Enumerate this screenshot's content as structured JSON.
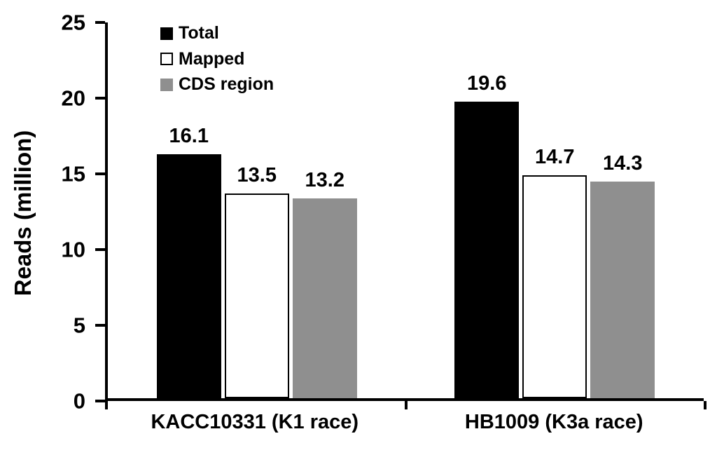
{
  "chart_data": {
    "type": "bar",
    "title": "",
    "xlabel": "",
    "ylabel": "Reads (million)",
    "ylim": [
      0,
      25
    ],
    "yticks": [
      0,
      5,
      10,
      15,
      20,
      25
    ],
    "grid": false,
    "legend_position": "top-left-inside",
    "value_labels_shown": true,
    "categories": [
      "KACC10331 (K1 race)",
      "HB1009 (K3a race)"
    ],
    "series": [
      {
        "name": "Total",
        "color": "#000000",
        "border": "#000000",
        "values": [
          16.1,
          19.6
        ]
      },
      {
        "name": "Mapped",
        "color": "#ffffff",
        "border": "#000000",
        "values": [
          13.5,
          14.7
        ]
      },
      {
        "name": "CDS region",
        "color": "#8f8f8f",
        "border": "#8f8f8f",
        "values": [
          13.2,
          14.3
        ]
      }
    ],
    "axis_color": "#000000",
    "text_color": "#000000",
    "background_color": "#ffffff"
  }
}
